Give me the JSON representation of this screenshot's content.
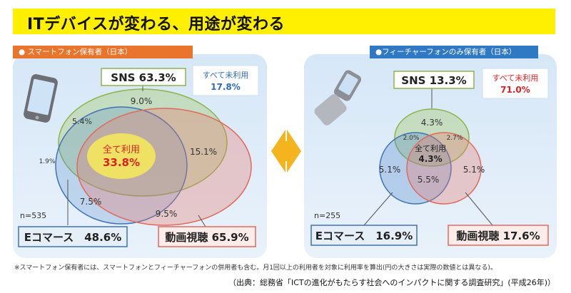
{
  "title": "ITデバイスが変わる、用途が変わる",
  "footnote": "※スマートフォン保有者には、スマートフォンとフィーチャーフォンの併用者も含む。月1回以上の利用者を対象に利用率を算出(円の大きさは実際の数値とは異なる)。",
  "source": "（出典：総務省「ICTの進化がもたらす社会へのインパクトに関する調査研究」(平成26年)）",
  "colors": {
    "sns": "#9bc35a",
    "ecommerce": "#4a82c6",
    "video": "#e8776a",
    "left_header": "#e9742b",
    "right_header": "#2e78c4",
    "none_left": "#2e6db4",
    "none_right": "#e02020"
  },
  "chart_data": [
    {
      "type": "venn",
      "panel_title": "スマートフォン保有者（日本）",
      "sample": "n=535",
      "sets": [
        {
          "name": "SNS",
          "label": "SNS 63.3%",
          "value": 63.3
        },
        {
          "name": "Eコマース",
          "label": "Eコマース　48.6%",
          "value": 48.6
        },
        {
          "name": "動画視聴",
          "label": "動画視聴 65.9%",
          "value": 65.9
        }
      ],
      "regions": [
        {
          "sets": [
            "SNS"
          ],
          "value": 9.0,
          "label": "9.0%"
        },
        {
          "sets": [
            "SNS",
            "Eコマース"
          ],
          "value": 5.4,
          "label": "5.4%"
        },
        {
          "sets": [
            "SNS",
            "動画視聴"
          ],
          "value": 15.1,
          "label": "15.1%"
        },
        {
          "sets": [
            "Eコマース"
          ],
          "value": 1.9,
          "label": "1.9%"
        },
        {
          "sets": [
            "Eコマース",
            "動画視聴"
          ],
          "value": 7.5,
          "label": "7.5%"
        },
        {
          "sets": [
            "動画視聴"
          ],
          "value": 9.5,
          "label": "9.5%"
        },
        {
          "sets": [
            "SNS",
            "Eコマース",
            "動画視聴"
          ],
          "value": 33.8,
          "label": "33.8%",
          "title": "全て利用"
        }
      ],
      "none": {
        "title": "すべて未利用",
        "value": 17.8,
        "label": "17.8%"
      }
    },
    {
      "type": "venn",
      "panel_title": "●フィーチャーフォンのみ保有者（日本）",
      "sample": "n=255",
      "sets": [
        {
          "name": "SNS",
          "label": "SNS 13.3%",
          "value": 13.3
        },
        {
          "name": "Eコマース",
          "label": "Eコマース　16.9%",
          "value": 16.9
        },
        {
          "name": "動画視聴",
          "label": "動画視聴 17.6%",
          "value": 17.6
        }
      ],
      "regions": [
        {
          "sets": [
            "SNS"
          ],
          "value": 4.3,
          "label": "4.3%"
        },
        {
          "sets": [
            "SNS",
            "Eコマース"
          ],
          "value": 2.0,
          "label": "2.0%"
        },
        {
          "sets": [
            "SNS",
            "動画視聴"
          ],
          "value": 2.7,
          "label": "2.7%"
        },
        {
          "sets": [
            "Eコマース"
          ],
          "value": 5.1,
          "label": "5.1%"
        },
        {
          "sets": [
            "Eコマース",
            "動画視聴"
          ],
          "value": 5.5,
          "label": "5.5%"
        },
        {
          "sets": [
            "動画視聴"
          ],
          "value": 5.1,
          "label": "5.1%"
        },
        {
          "sets": [
            "SNS",
            "Eコマース",
            "動画視聴"
          ],
          "value": 4.3,
          "label": "4.3%",
          "title": "全て利用"
        }
      ],
      "none": {
        "title": "すべて未利用",
        "value": 71.0,
        "label": "71.0%"
      }
    }
  ]
}
